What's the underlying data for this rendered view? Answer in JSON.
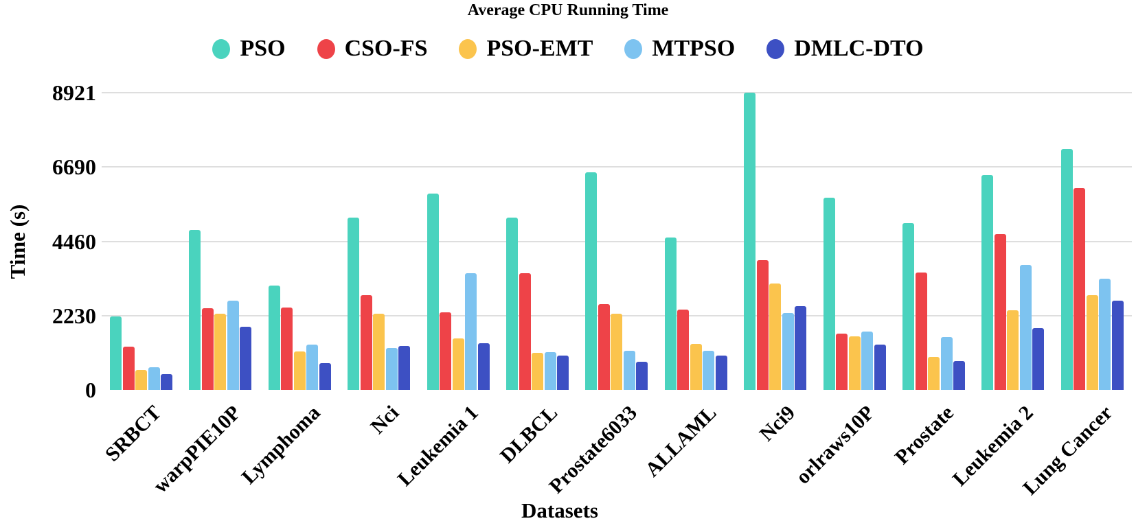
{
  "chart_data": {
    "type": "bar",
    "title": "Average CPU Running Time",
    "xlabel": "Datasets",
    "ylabel": "Time (s)",
    "ylim": [
      0,
      8921
    ],
    "yticks": [
      0,
      2230,
      4460,
      6690,
      8921
    ],
    "grid": "horizontal-only, light gray, no zero baseline",
    "legend_position": "top-center",
    "background": "#ffffff",
    "categories": [
      "SRBCT",
      "warpPIE10P",
      "Lymphoma",
      "Nci",
      "Leukemia 1",
      "DLBCL",
      "Prostate6033",
      "ALLAML",
      "Nci9",
      "orlraws10P",
      "Prostate",
      "Leukemia 2",
      "Lung Cancer"
    ],
    "series": [
      {
        "name": "PSO",
        "color": "#4AD3BE",
        "values": [
          2200,
          4810,
          3140,
          5180,
          5900,
          5180,
          6530,
          4580,
          8921,
          5760,
          5000,
          6440,
          7230
        ]
      },
      {
        "name": "CSO-FS",
        "color": "#EE4348",
        "values": [
          1300,
          2460,
          2480,
          2850,
          2330,
          3510,
          2580,
          2420,
          3890,
          1690,
          3530,
          4670,
          6050
        ]
      },
      {
        "name": "PSO-EMT",
        "color": "#FBC44D",
        "values": [
          590,
          2290,
          1160,
          2290,
          1550,
          1120,
          2290,
          1380,
          3200,
          1610,
          990,
          2400,
          2850
        ]
      },
      {
        "name": "MTPSO",
        "color": "#7DC3F0",
        "values": [
          680,
          2670,
          1360,
          1260,
          3510,
          1140,
          1180,
          1180,
          2310,
          1755,
          1590,
          3760,
          3330
        ]
      },
      {
        "name": "DMLC-DTO",
        "color": "#3D50C3",
        "values": [
          480,
          1900,
          800,
          1320,
          1400,
          1030,
          850,
          1030,
          2520,
          1360,
          870,
          1860,
          2670
        ]
      }
    ]
  }
}
